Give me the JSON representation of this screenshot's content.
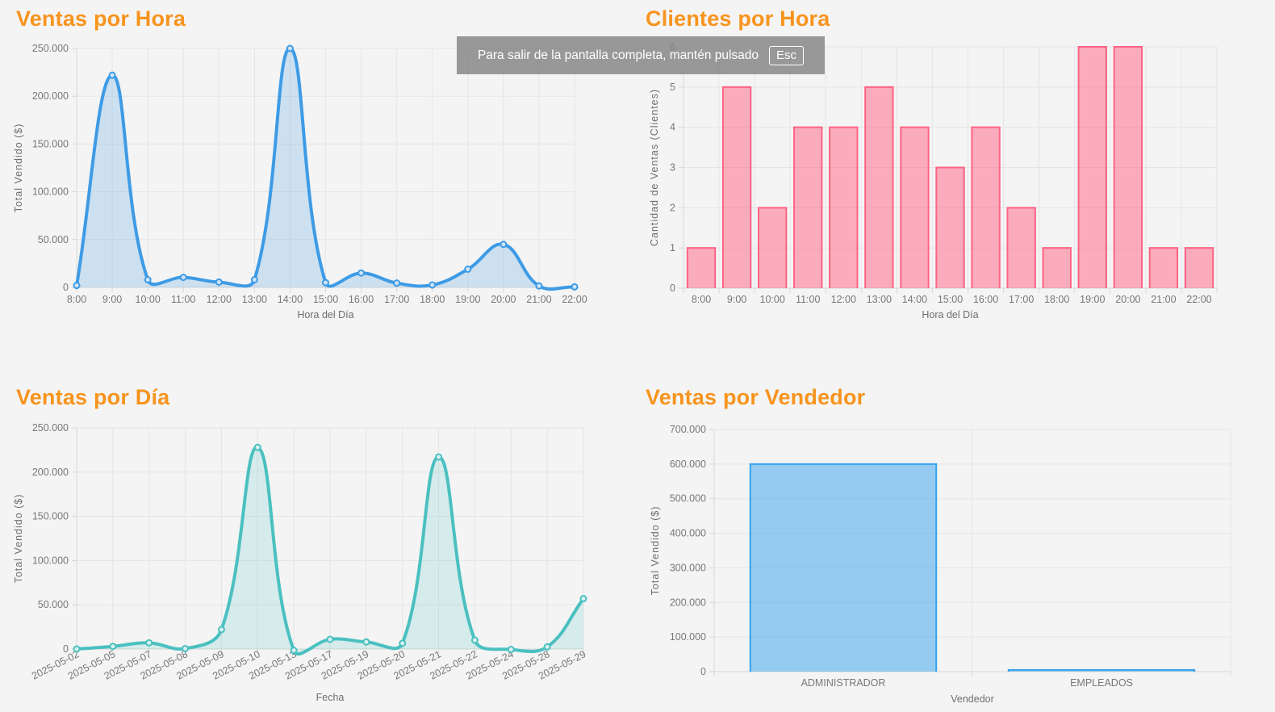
{
  "overlay": {
    "message": "Para salir de la pantalla completa, mantén pulsado",
    "key_label": "Esc"
  },
  "theme": {
    "background": "#f4f4f4",
    "title_color": "#f7941e",
    "grid_color": "#e5e5e5",
    "axis_color": "#d7d7d7",
    "tick_color": "#777777"
  },
  "chart_data": [
    {
      "id": "ventas-por-hora",
      "type": "line",
      "title": "Ventas por Hora",
      "xlabel": "Hora del Día",
      "ylabel": "Total Vendido ($)",
      "categories": [
        "8:00",
        "9:00",
        "10:00",
        "11:00",
        "12:00",
        "13:00",
        "14:00",
        "15:00",
        "16:00",
        "17:00",
        "18:00",
        "19:00",
        "20:00",
        "21:00",
        "22:00"
      ],
      "values": [
        2000,
        222000,
        8000,
        10500,
        5500,
        8000,
        250000,
        5000,
        15000,
        4500,
        2500,
        19000,
        45000,
        1500,
        500
      ],
      "ylim": [
        0,
        250000
      ],
      "ytick_step": 50000,
      "grid": true,
      "legend": "none",
      "line_color": "#3e9be5",
      "fill_color": "rgba(62,155,229,0.22)",
      "marker_fill": "#cfe4f7"
    },
    {
      "id": "clientes-por-hora",
      "type": "bar",
      "title": "Clientes por Hora",
      "xlabel": "Hora del Día",
      "ylabel": "Cantidad de Ventas (Clientes)",
      "categories": [
        "8:00",
        "9:00",
        "10:00",
        "11:00",
        "12:00",
        "13:00",
        "14:00",
        "15:00",
        "16:00",
        "17:00",
        "18:00",
        "19:00",
        "20:00",
        "21:00",
        "22:00"
      ],
      "values": [
        1,
        5,
        2,
        4,
        4,
        5,
        4,
        3,
        4,
        2,
        1,
        6,
        6,
        1,
        1
      ],
      "ylim": [
        0,
        6
      ],
      "ytick_step": 1,
      "grid": true,
      "legend": "none",
      "bar_fill": "rgba(255,99,132,0.5)",
      "bar_border": "#ff6384"
    },
    {
      "id": "ventas-por-dia",
      "type": "line",
      "title": "Ventas por Día",
      "xlabel": "Fecha",
      "ylabel": "Total Vendido ($)",
      "categories": [
        "2025-05-02",
        "2025-05-05",
        "2025-05-07",
        "2025-05-08",
        "2025-05-09",
        "2025-05-10",
        "2025-05-13",
        "2025-05-17",
        "2025-05-19",
        "2025-05-20",
        "2025-05-21",
        "2025-05-22",
        "2025-05-24",
        "2025-05-28",
        "2025-05-29"
      ],
      "values": [
        0,
        3000,
        7000,
        500,
        22000,
        228000,
        -1500,
        11000,
        8000,
        6500,
        217000,
        10000,
        -500,
        2500,
        57000
      ],
      "ylim": [
        0,
        250000
      ],
      "ytick_step": 50000,
      "grid": true,
      "legend": "none",
      "line_color": "#4bc0c0",
      "fill_color": "rgba(75,192,192,0.18)",
      "marker_fill": "#d9f0f0"
    },
    {
      "id": "ventas-por-vendedor",
      "type": "bar",
      "title": "Ventas por Vendedor",
      "xlabel": "Vendedor",
      "ylabel": "Total Vendido ($)",
      "categories": [
        "ADMINISTRADOR",
        "EMPLEADOS"
      ],
      "values": [
        600000,
        5000
      ],
      "ylim": [
        0,
        700000
      ],
      "ytick_step": 100000,
      "grid": true,
      "legend": "none",
      "bar_fill": "rgba(54,162,235,0.5)",
      "bar_border": "#36a2eb"
    }
  ]
}
